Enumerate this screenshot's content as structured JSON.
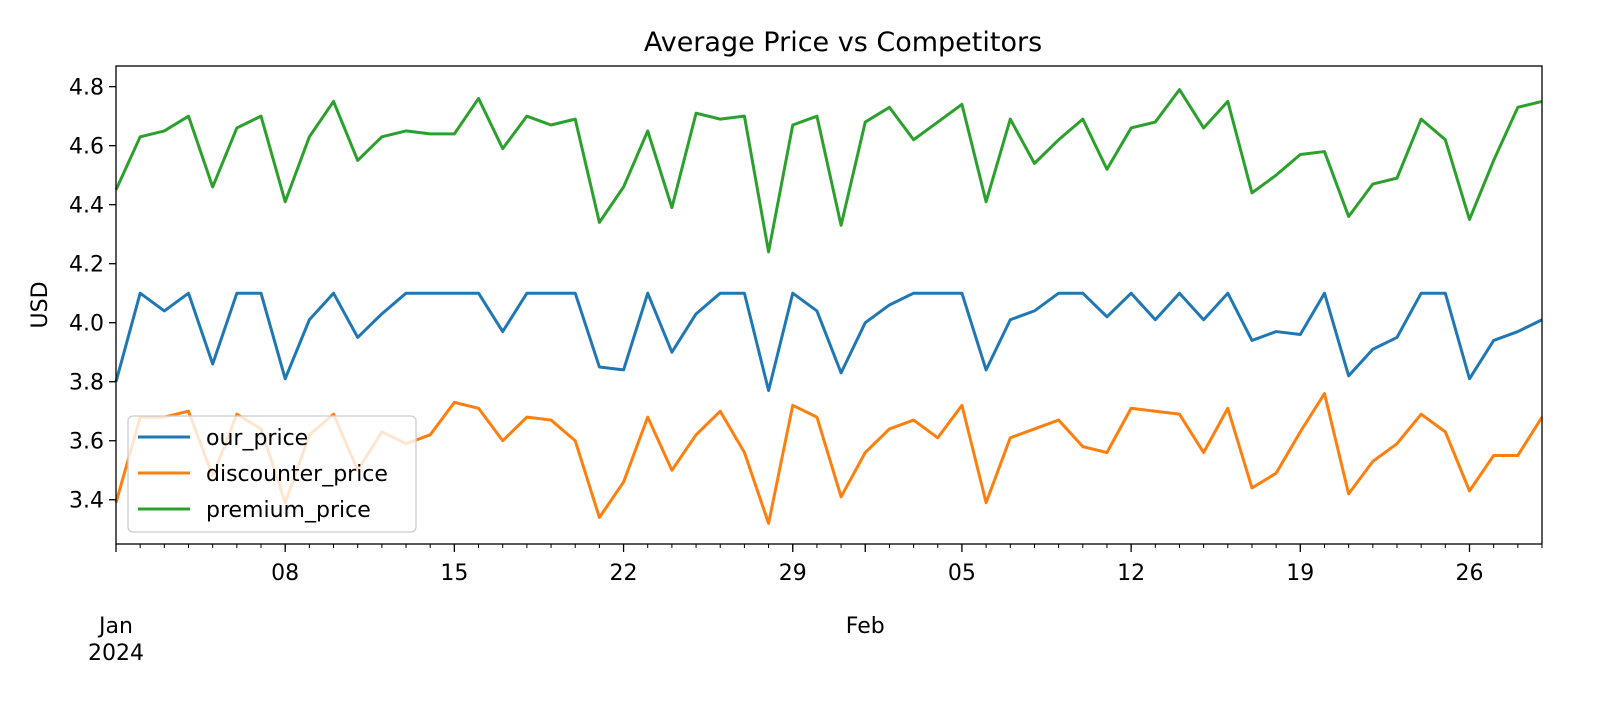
{
  "chart_data": {
    "type": "line",
    "title": "Average Price vs Competitors",
    "xlabel": "",
    "ylabel": "USD",
    "x_start": "2024-01-01",
    "x_end": "2024-02-29",
    "ylim": [
      3.25,
      4.87
    ],
    "yticks": [
      3.4,
      3.6,
      3.8,
      4.0,
      4.2,
      4.4,
      4.6,
      4.8
    ],
    "xticks_major": [
      {
        "date": "2024-01-08",
        "label": "08"
      },
      {
        "date": "2024-01-15",
        "label": "15"
      },
      {
        "date": "2024-01-22",
        "label": "22"
      },
      {
        "date": "2024-01-29",
        "label": "29"
      },
      {
        "date": "2024-02-05",
        "label": "05"
      },
      {
        "date": "2024-02-12",
        "label": "12"
      },
      {
        "date": "2024-02-19",
        "label": "19"
      },
      {
        "date": "2024-02-26",
        "label": "26"
      }
    ],
    "xticks_period": [
      {
        "date": "2024-01-01",
        "label": "Jan",
        "sublabel": "2024"
      },
      {
        "date": "2024-02-01",
        "label": "Feb",
        "sublabel": ""
      }
    ],
    "grid": false,
    "legend_position": "lower-left",
    "series": [
      {
        "name": "our_price",
        "color": "#1f77b4",
        "values": [
          3.8,
          4.1,
          4.04,
          4.1,
          3.86,
          4.1,
          4.1,
          3.81,
          4.01,
          4.1,
          3.95,
          4.03,
          4.1,
          4.1,
          4.1,
          4.1,
          3.97,
          4.1,
          4.1,
          4.1,
          3.85,
          3.84,
          4.1,
          3.9,
          4.03,
          4.1,
          4.1,
          3.77,
          4.1,
          4.04,
          3.83,
          4.0,
          4.06,
          4.1,
          4.1,
          4.1,
          3.84,
          4.01,
          4.04,
          4.1,
          4.1,
          4.02,
          4.1,
          4.01,
          4.1,
          4.01,
          4.1,
          3.94,
          3.97,
          3.96,
          4.1,
          3.82,
          3.91,
          3.95,
          4.1,
          4.1,
          3.81,
          3.94,
          3.97,
          4.01
        ]
      },
      {
        "name": "discounter_price",
        "color": "#ff7f0e",
        "values": [
          3.39,
          3.68,
          3.68,
          3.7,
          3.48,
          3.69,
          3.64,
          3.39,
          3.62,
          3.69,
          3.5,
          3.63,
          3.59,
          3.62,
          3.73,
          3.71,
          3.6,
          3.68,
          3.67,
          3.6,
          3.34,
          3.46,
          3.68,
          3.5,
          3.62,
          3.7,
          3.56,
          3.32,
          3.72,
          3.68,
          3.41,
          3.56,
          3.64,
          3.67,
          3.61,
          3.72,
          3.39,
          3.61,
          3.64,
          3.67,
          3.58,
          3.56,
          3.71,
          3.7,
          3.69,
          3.56,
          3.71,
          3.44,
          3.49,
          3.63,
          3.76,
          3.42,
          3.53,
          3.59,
          3.69,
          3.63,
          3.43,
          3.55,
          3.55,
          3.68
        ]
      },
      {
        "name": "premium_price",
        "color": "#2ca02c",
        "values": [
          4.45,
          4.63,
          4.65,
          4.7,
          4.46,
          4.66,
          4.7,
          4.41,
          4.63,
          4.75,
          4.55,
          4.63,
          4.65,
          4.64,
          4.64,
          4.76,
          4.59,
          4.7,
          4.67,
          4.69,
          4.34,
          4.46,
          4.65,
          4.39,
          4.71,
          4.69,
          4.7,
          4.24,
          4.67,
          4.7,
          4.33,
          4.68,
          4.73,
          4.62,
          4.68,
          4.74,
          4.41,
          4.69,
          4.54,
          4.62,
          4.69,
          4.52,
          4.66,
          4.68,
          4.79,
          4.66,
          4.75,
          4.44,
          4.5,
          4.57,
          4.58,
          4.36,
          4.47,
          4.49,
          4.69,
          4.62,
          4.35,
          4.55,
          4.73,
          4.75
        ]
      }
    ]
  }
}
